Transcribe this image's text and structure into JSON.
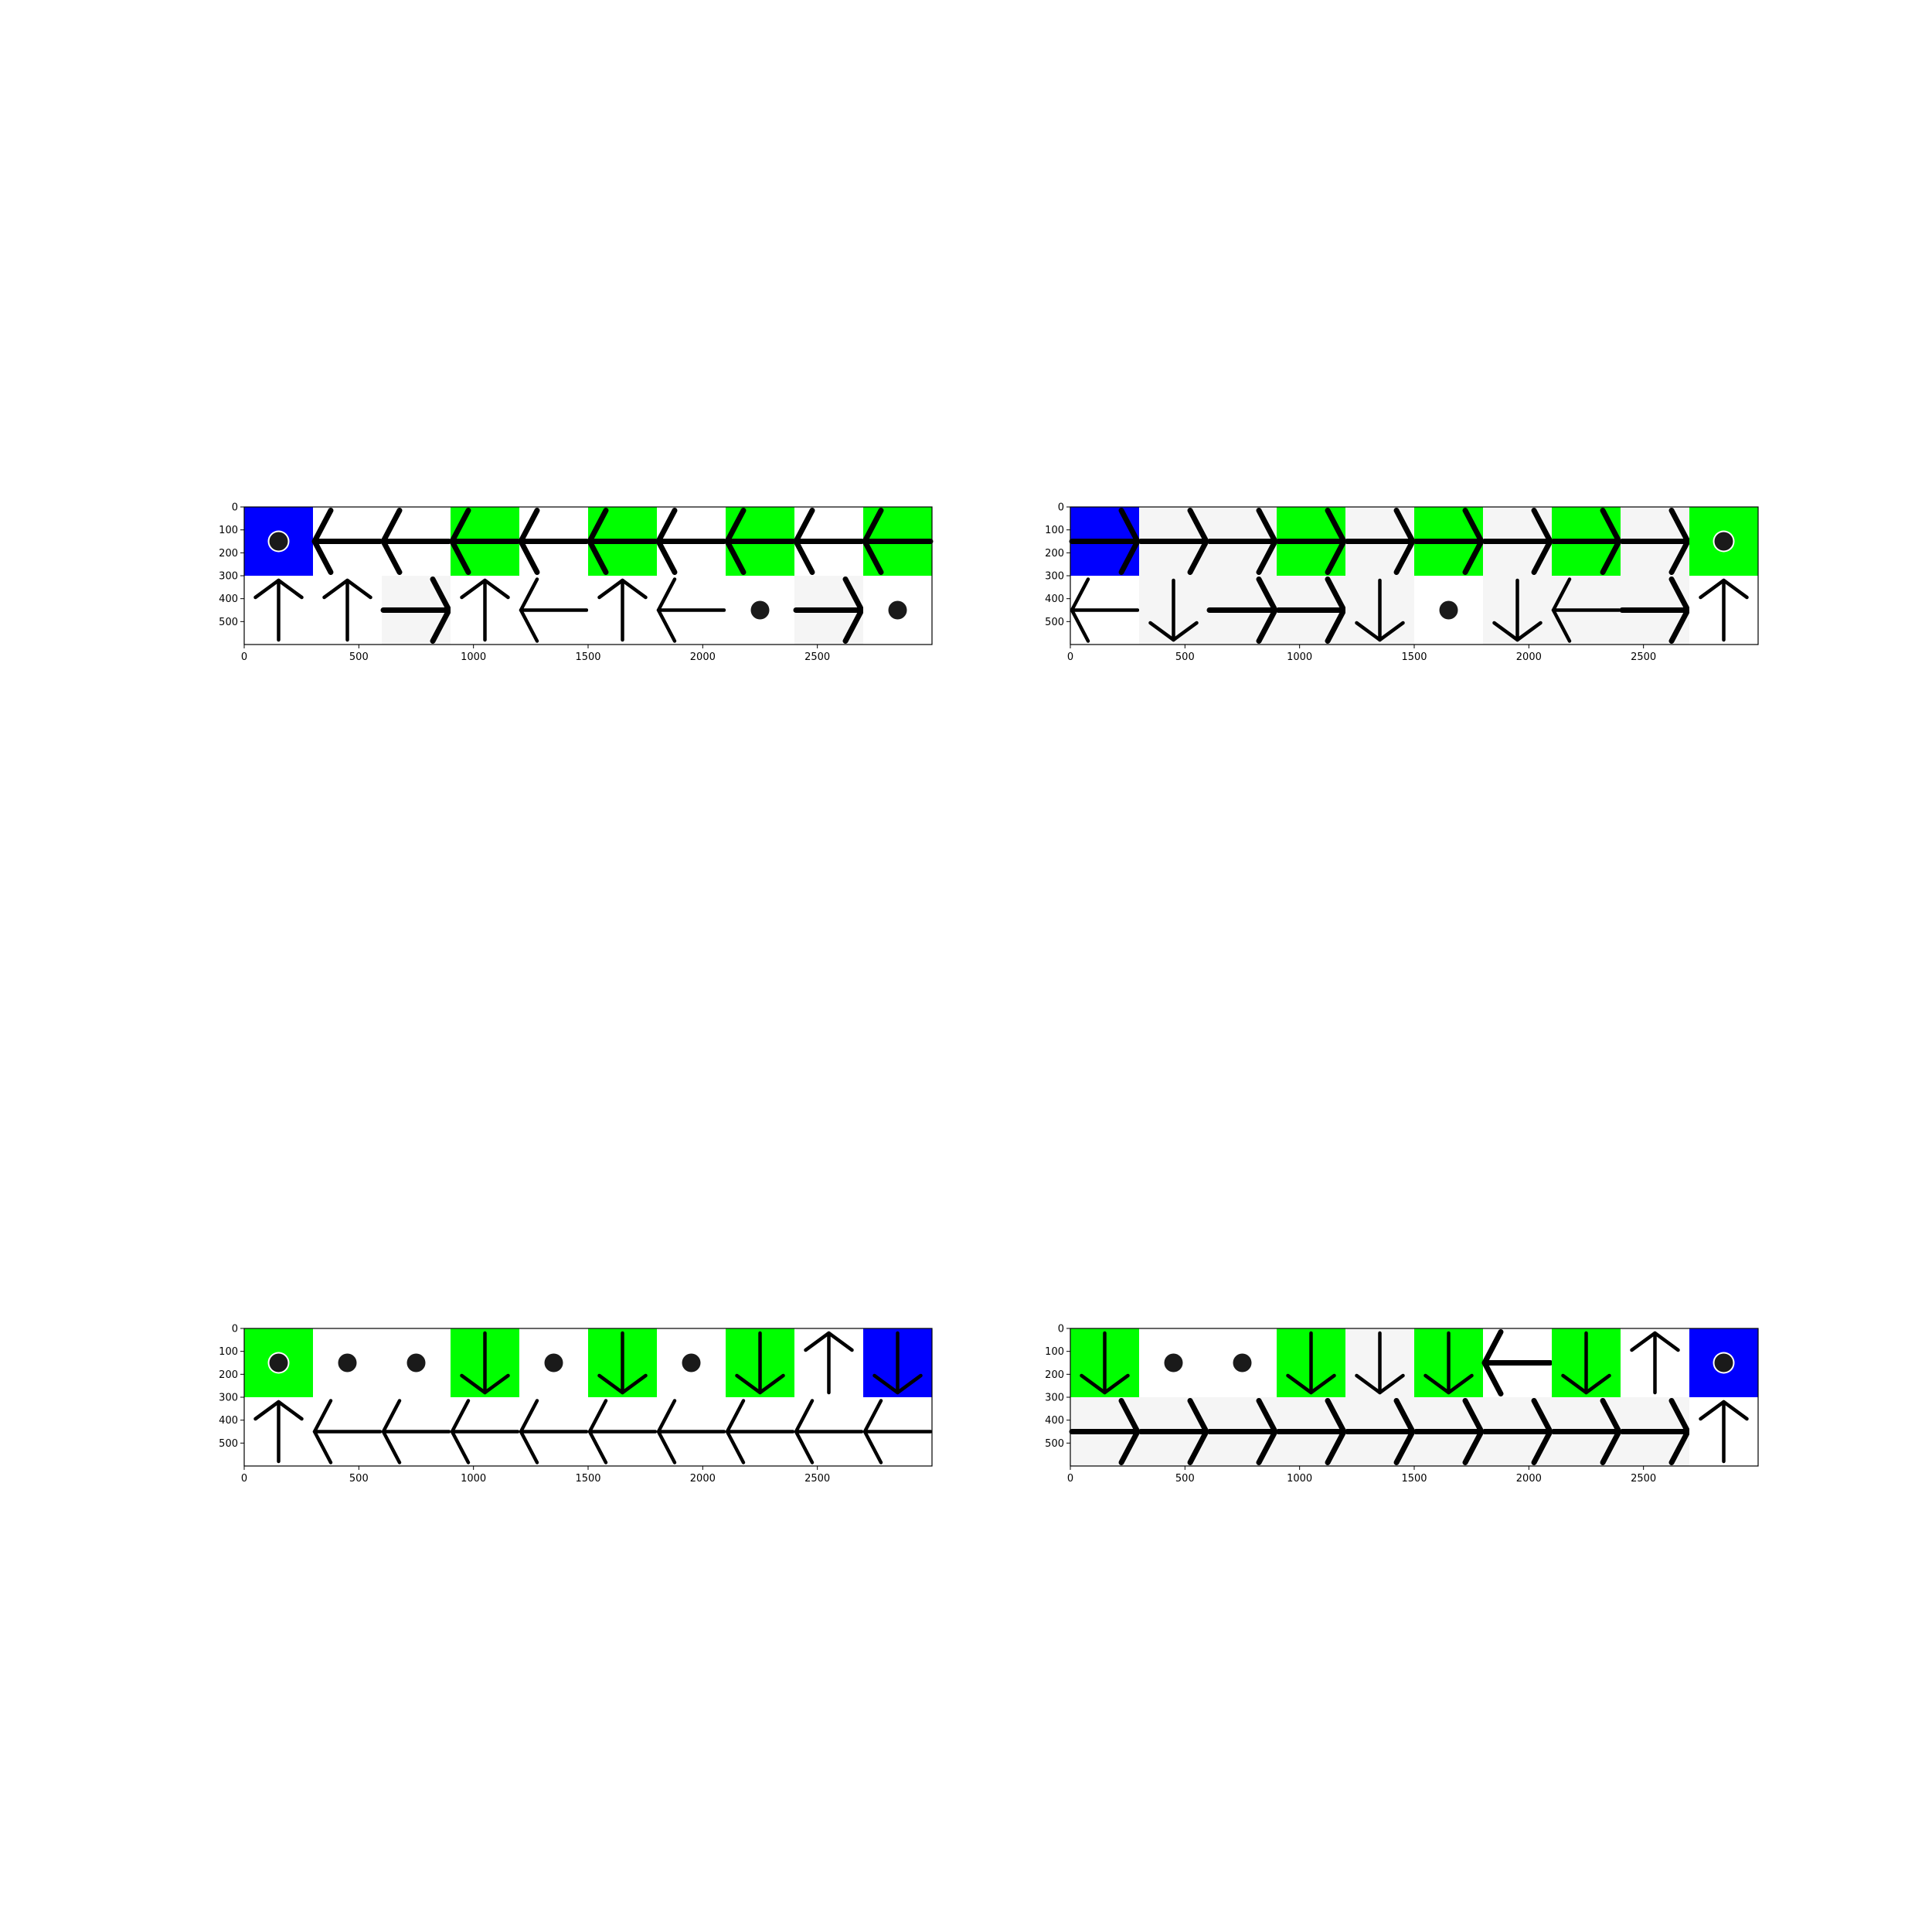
{
  "colors": {
    "blue": "#0000ff",
    "green": "#00ff00",
    "gray": "#f5f5f5",
    "white": "#ffffff",
    "ink": "#000000",
    "dot": "#1a1a1a"
  },
  "legend": {
    "cell_fill": {
      "B": "blue",
      "G": "green",
      "L": "gray",
      "W": "white"
    },
    "cell_mark": {
      "U": "up-arrow",
      "D": "down-arrow",
      "L": "left-arrow",
      "R": "right-arrow",
      "O": "dot",
      "-": "none"
    }
  },
  "panels": [
    {
      "axes": {
        "x_ticks": [
          "0",
          "500",
          "1000",
          "1500",
          "2000",
          "2500"
        ],
        "y_ticks": [
          "0",
          "100",
          "200",
          "300",
          "400",
          "500"
        ],
        "x_tick_values": [
          0,
          500,
          1000,
          1500,
          2000,
          2500
        ],
        "y_tick_values": [
          0,
          100,
          200,
          300,
          400,
          500
        ],
        "x_range": [
          0,
          3000
        ],
        "y_range": [
          0,
          600
        ],
        "grid": false
      },
      "rows": [
        {
          "fills": [
            "B",
            "W",
            "W",
            "G",
            "W",
            "G",
            "W",
            "G",
            "W",
            "G"
          ],
          "marks": [
            "O",
            "L",
            "L",
            "L",
            "L",
            "L",
            "L",
            "L",
            "L",
            "L"
          ]
        },
        {
          "fills": [
            "W",
            "W",
            "L",
            "W",
            "W",
            "W",
            "W",
            "W",
            "L",
            "W"
          ],
          "marks": [
            "U",
            "U",
            "R",
            "U",
            "L",
            "U",
            "L",
            "O",
            "R",
            "O"
          ]
        }
      ]
    },
    {
      "axes": {
        "x_ticks": [
          "0",
          "500",
          "1000",
          "1500",
          "2000",
          "2500"
        ],
        "y_ticks": [
          "0",
          "100",
          "200",
          "300",
          "400",
          "500"
        ],
        "x_tick_values": [
          0,
          500,
          1000,
          1500,
          2000,
          2500
        ],
        "y_tick_values": [
          0,
          100,
          200,
          300,
          400,
          500
        ],
        "x_range": [
          0,
          3000
        ],
        "y_range": [
          0,
          600
        ],
        "grid": false
      },
      "rows": [
        {
          "fills": [
            "B",
            "L",
            "L",
            "G",
            "L",
            "G",
            "L",
            "G",
            "L",
            "G"
          ],
          "marks": [
            "R",
            "R",
            "R",
            "R",
            "R",
            "R",
            "R",
            "R",
            "R",
            "O"
          ]
        },
        {
          "fills": [
            "W",
            "L",
            "L",
            "L",
            "L",
            "W",
            "L",
            "L",
            "L",
            "W"
          ],
          "marks": [
            "L",
            "D",
            "R",
            "R",
            "D",
            "O",
            "D",
            "L",
            "R",
            "U"
          ]
        }
      ]
    },
    {
      "axes": {
        "x_ticks": [
          "0",
          "500",
          "1000",
          "1500",
          "2000",
          "2500"
        ],
        "y_ticks": [
          "0",
          "100",
          "200",
          "300",
          "400",
          "500"
        ],
        "x_tick_values": [
          0,
          500,
          1000,
          1500,
          2000,
          2500
        ],
        "y_tick_values": [
          0,
          100,
          200,
          300,
          400,
          500
        ],
        "x_range": [
          0,
          3000
        ],
        "y_range": [
          0,
          600
        ],
        "grid": false
      },
      "rows": [
        {
          "fills": [
            "G",
            "W",
            "W",
            "G",
            "W",
            "G",
            "W",
            "G",
            "W",
            "B"
          ],
          "marks": [
            "O",
            "O",
            "O",
            "D",
            "O",
            "D",
            "O",
            "D",
            "U",
            "D"
          ]
        },
        {
          "fills": [
            "W",
            "W",
            "W",
            "W",
            "W",
            "W",
            "W",
            "W",
            "W",
            "W"
          ],
          "marks": [
            "U",
            "L",
            "L",
            "L",
            "L",
            "L",
            "L",
            "L",
            "L",
            "L"
          ]
        }
      ]
    },
    {
      "axes": {
        "x_ticks": [
          "0",
          "500",
          "1000",
          "1500",
          "2000",
          "2500"
        ],
        "y_ticks": [
          "0",
          "100",
          "200",
          "300",
          "400",
          "500"
        ],
        "x_tick_values": [
          0,
          500,
          1000,
          1500,
          2000,
          2500
        ],
        "y_tick_values": [
          0,
          100,
          200,
          300,
          400,
          500
        ],
        "x_range": [
          0,
          3000
        ],
        "y_range": [
          0,
          600
        ],
        "grid": false
      },
      "rows": [
        {
          "fills": [
            "G",
            "W",
            "W",
            "G",
            "L",
            "G",
            "W",
            "G",
            "W",
            "B"
          ],
          "marks": [
            "D",
            "O",
            "O",
            "D",
            "D",
            "D",
            "L",
            "D",
            "U",
            "O"
          ]
        },
        {
          "fills": [
            "L",
            "L",
            "L",
            "L",
            "L",
            "L",
            "L",
            "L",
            "L",
            "W"
          ],
          "marks": [
            "R",
            "R",
            "R",
            "R",
            "R",
            "R",
            "R",
            "R",
            "R",
            "U"
          ]
        }
      ]
    }
  ]
}
